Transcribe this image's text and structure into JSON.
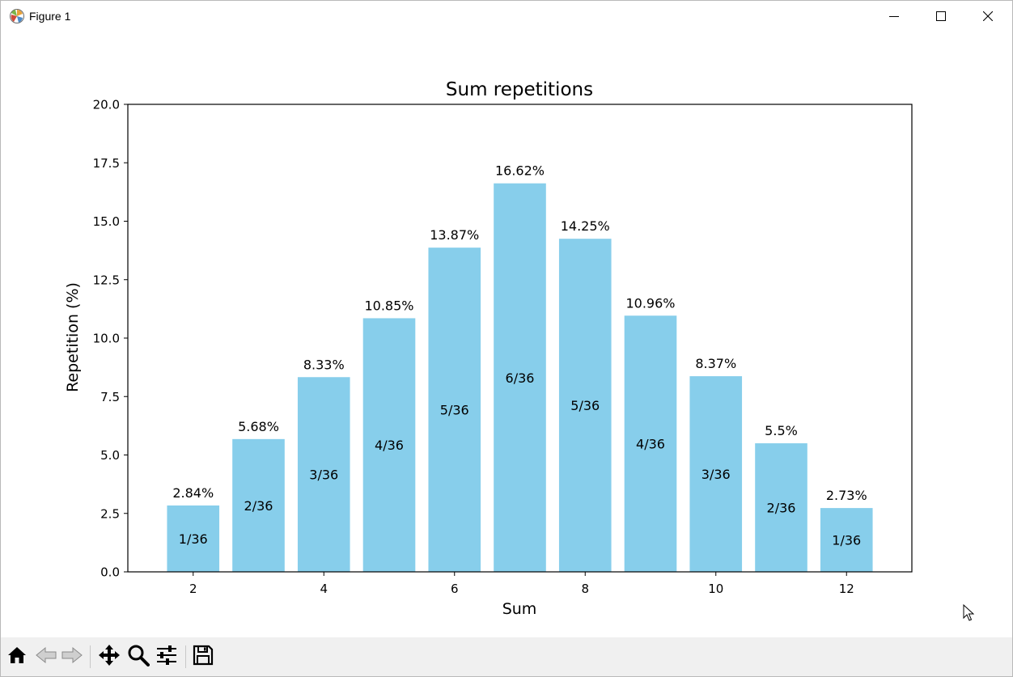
{
  "window": {
    "title": "Figure 1",
    "minimize_icon": "minimize-icon",
    "maximize_icon": "maximize-icon",
    "close_icon": "close-icon"
  },
  "toolbar": {
    "items": [
      "home-icon",
      "back-arrow-icon",
      "forward-arrow-icon",
      "pan-move-icon",
      "zoom-magnifier-icon",
      "configure-sliders-icon",
      "save-floppy-icon"
    ]
  },
  "chart_data": {
    "type": "bar",
    "title": "Sum repetitions",
    "xlabel": "Sum",
    "ylabel": "Repetition (%)",
    "x": [
      2,
      3,
      4,
      5,
      6,
      7,
      8,
      9,
      10,
      11,
      12
    ],
    "values": [
      2.84,
      5.68,
      8.33,
      10.85,
      13.87,
      16.62,
      14.25,
      10.96,
      8.37,
      5.5,
      2.73
    ],
    "value_labels": [
      "2.84%",
      "5.68%",
      "8.33%",
      "10.85%",
      "13.87%",
      "16.62%",
      "14.25%",
      "10.96%",
      "8.37%",
      "5.5%",
      "2.73%"
    ],
    "inner_labels": [
      "1/36",
      "2/36",
      "3/36",
      "4/36",
      "5/36",
      "6/36",
      "5/36",
      "4/36",
      "3/36",
      "2/36",
      "1/36"
    ],
    "xticks": [
      2,
      4,
      6,
      8,
      10,
      12
    ],
    "xtick_labels": [
      "2",
      "4",
      "6",
      "8",
      "10",
      "12"
    ],
    "yticks": [
      0,
      2.5,
      5,
      7.5,
      10,
      12.5,
      15,
      17.5,
      20
    ],
    "ytick_labels": [
      "0.0",
      "2.5",
      "5.0",
      "7.5",
      "10.0",
      "12.5",
      "15.0",
      "17.5",
      "20.0"
    ],
    "xlim": [
      1,
      13
    ],
    "ylim": [
      0,
      20
    ],
    "bar_color": "#87ceeb",
    "grid": false
  }
}
